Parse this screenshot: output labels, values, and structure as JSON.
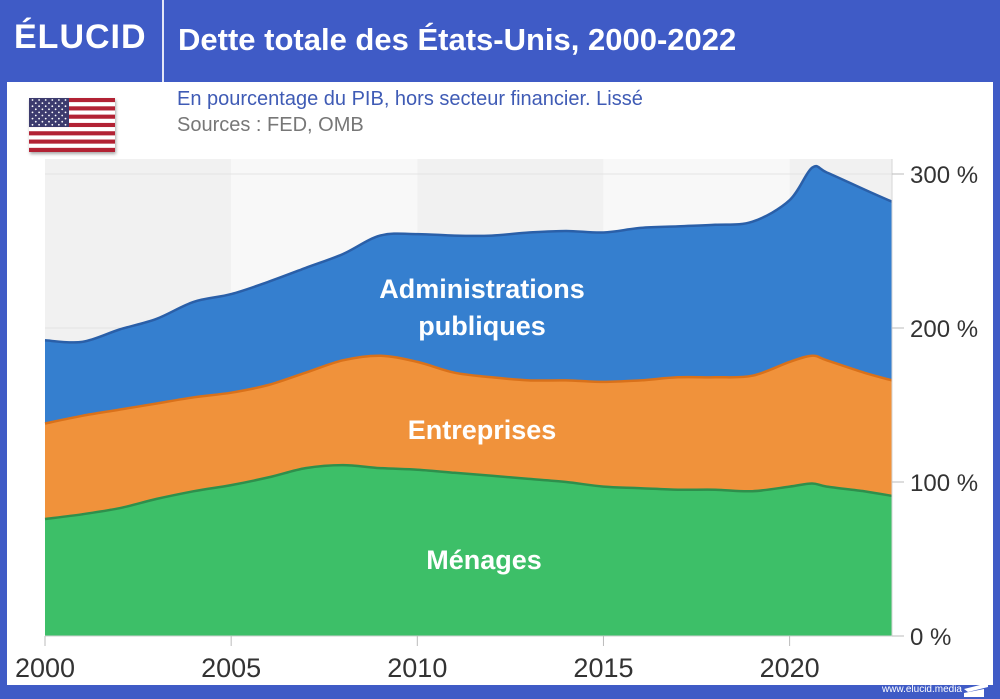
{
  "header": {
    "logo": "ÉLUCID",
    "title": "Dette totale des États-Unis, 2000-2022"
  },
  "subtitle": "En pourcentage du PIB, hors secteur financier. Lissé",
  "sources": "Sources : FED, OMB",
  "flag": "us-flag-icon",
  "footer": {
    "url": "www.elucid.media"
  },
  "colors": {
    "frame": "#3f5bc6",
    "menages": "#3dbf68",
    "entreprises": "#f0923b",
    "administrations": "#357fcf",
    "menages_line": "#2e8f4c",
    "entreprises_line": "#d9711a",
    "administrations_line": "#2a5fa8"
  },
  "chart_data": {
    "type": "area",
    "stacked": true,
    "title": "Dette totale des États-Unis, 2000-2022",
    "subtitle": "En pourcentage du PIB, hors secteur financier. Lissé",
    "xlabel": "",
    "ylabel": "",
    "xlim": [
      2000,
      2022.75
    ],
    "ylim": [
      0,
      300
    ],
    "x_ticks": [
      2000,
      2005,
      2010,
      2015,
      2020
    ],
    "x_tick_labels": [
      "2000",
      "2005",
      "2010",
      "2015",
      "2020"
    ],
    "y_ticks": [
      0,
      100,
      200,
      300
    ],
    "y_tick_labels": [
      "0 %",
      "100 %",
      "200 %",
      "300 %"
    ],
    "y_axis_side": "right",
    "grid": false,
    "legend": "inline-labels",
    "x": [
      2000,
      2001,
      2002,
      2003,
      2004,
      2005,
      2006,
      2007,
      2008,
      2009,
      2010,
      2011,
      2012,
      2013,
      2014,
      2015,
      2016,
      2017,
      2018,
      2019,
      2020,
      2020.6,
      2021,
      2022,
      2022.75
    ],
    "series": [
      {
        "name": "Ménages",
        "label": "Ménages",
        "values": [
          76,
          79,
          83,
          89,
          94,
          98,
          103,
          109,
          111,
          109,
          108,
          106,
          104,
          102,
          100,
          97,
          96,
          95,
          95,
          94,
          97,
          99,
          97,
          94,
          91
        ]
      },
      {
        "name": "Entreprises",
        "label": "Entreprises",
        "values": [
          62,
          64,
          64,
          62,
          61,
          60,
          60,
          62,
          68,
          73,
          70,
          65,
          64,
          64,
          66,
          68,
          70,
          73,
          73,
          75,
          81,
          83,
          82,
          77,
          75
        ]
      },
      {
        "name": "Administrations publiques",
        "label_lines": [
          "Administrations",
          "publiques"
        ],
        "values": [
          54,
          48,
          52,
          55,
          62,
          64,
          67,
          68,
          69,
          78,
          83,
          89,
          92,
          96,
          97,
          97,
          99,
          98,
          99,
          100,
          105,
          122,
          122,
          119,
          116
        ]
      }
    ]
  }
}
